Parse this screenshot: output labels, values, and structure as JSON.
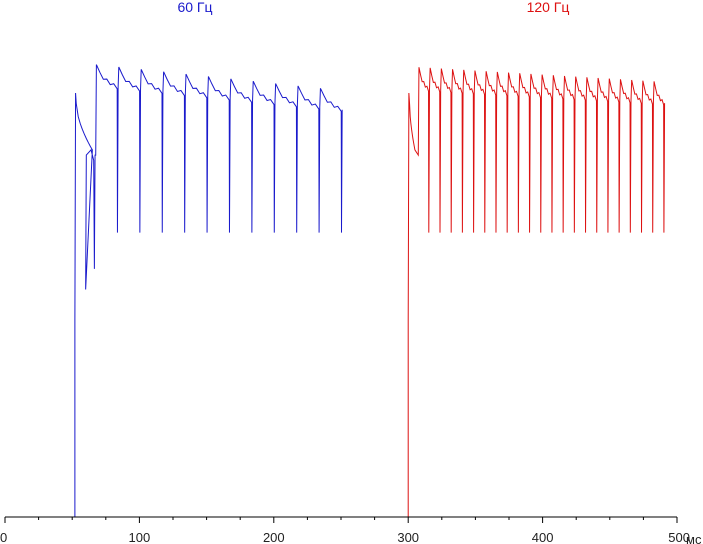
{
  "chart_data": {
    "type": "line",
    "title": "",
    "xlabel": "",
    "x_unit": "мс",
    "ylabel": "",
    "xlim": [
      0,
      500
    ],
    "ylim": [
      0,
      1.0
    ],
    "x_ticks": [
      0,
      100,
      200,
      300,
      400,
      500
    ],
    "x_tick_labels": [
      "0",
      "100",
      "200",
      "300",
      "400",
      "500"
    ],
    "grid": false,
    "legend": "labels above each trace",
    "series": [
      {
        "name": "60 Гц",
        "color": "#1a1acc",
        "baseline": 0.0,
        "baseline_range": [
          0,
          52
        ],
        "rise_at": 52,
        "high_start": 0.875,
        "high_end": 0.825,
        "frame_start": 68,
        "frame_period": 16.67,
        "frame_count": 11,
        "dip_level": 0.55,
        "end": 250,
        "decay_level": 0.95
      },
      {
        "name": "120 Гц",
        "color": "#dd1111",
        "baseline": 0.0,
        "baseline_range": [
          250,
          300
        ],
        "rise_at": 300,
        "high_start": 0.87,
        "high_end": 0.84,
        "frame_start": 308,
        "frame_period": 8.33,
        "frame_count": 22,
        "dip_level": 0.55,
        "end": 500,
        "decay_level": 0.95
      }
    ]
  }
}
